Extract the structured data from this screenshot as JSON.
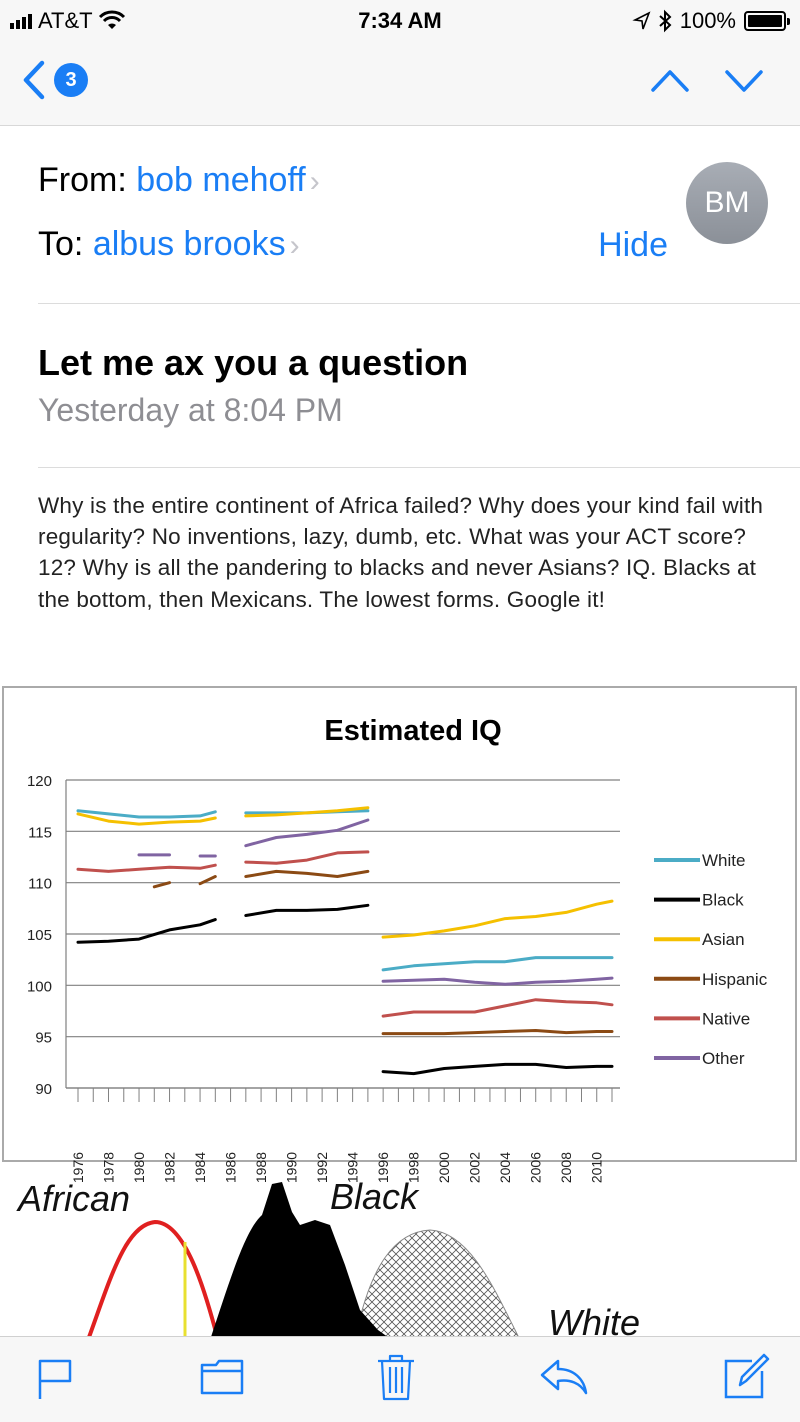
{
  "status": {
    "carrier": "AT&T",
    "time": "7:34 AM",
    "battery": "100%"
  },
  "nav": {
    "badge": "3"
  },
  "email": {
    "from_label": "From:",
    "from_name": "bob mehoff",
    "to_label": "To:",
    "to_name": "albus brooks",
    "hide_label": "Hide",
    "avatar_initials": "BM",
    "subject": "Let me ax you a question",
    "date": "Yesterday at 8:04 PM",
    "body": "Why is the entire continent of Africa failed?  Why does your kind fail with regularity?  No inventions, lazy, dumb, etc.  What was your ACT score?  12?  Why is all the pandering to blacks and never Asians?  IQ.  Blacks at the bottom, then Mexicans.  The lowest forms.  Google it!"
  },
  "bell_labels": {
    "african": "African",
    "black": "Black",
    "white": "White"
  },
  "chart_data": {
    "type": "line",
    "title": "Estimated IQ",
    "xlabel": "",
    "ylabel": "",
    "ylim": [
      90,
      120
    ],
    "yticks": [
      90,
      95,
      100,
      105,
      110,
      115,
      120
    ],
    "xlim": [
      1976,
      2011
    ],
    "xticks": [
      1976,
      1978,
      1980,
      1982,
      1984,
      1986,
      1988,
      1990,
      1992,
      1994,
      1996,
      1998,
      2000,
      2002,
      2004,
      2006,
      2008,
      2010
    ],
    "grid": true,
    "legend": "right",
    "series": [
      {
        "name": "White",
        "color": "#4bacc6",
        "segments": [
          [
            [
              1976,
              117.0
            ],
            [
              1978,
              116.7
            ],
            [
              1980,
              116.4
            ],
            [
              1982,
              116.4
            ],
            [
              1984,
              116.5
            ],
            [
              1985,
              116.9
            ]
          ],
          [
            [
              1987,
              116.8
            ],
            [
              1989,
              116.8
            ],
            [
              1991,
              116.8
            ],
            [
              1993,
              116.9
            ],
            [
              1995,
              117.0
            ]
          ],
          [
            [
              1996,
              101.5
            ],
            [
              1998,
              101.9
            ],
            [
              2000,
              102.1
            ],
            [
              2002,
              102.3
            ],
            [
              2004,
              102.3
            ],
            [
              2006,
              102.7
            ],
            [
              2008,
              102.7
            ],
            [
              2010,
              102.7
            ],
            [
              2011,
              102.7
            ]
          ]
        ]
      },
      {
        "name": "Black",
        "color": "#000000",
        "segments": [
          [
            [
              1976,
              104.2
            ],
            [
              1978,
              104.3
            ],
            [
              1980,
              104.5
            ],
            [
              1982,
              105.4
            ],
            [
              1984,
              105.9
            ],
            [
              1985,
              106.4
            ]
          ],
          [
            [
              1987,
              106.8
            ],
            [
              1989,
              107.3
            ],
            [
              1991,
              107.3
            ],
            [
              1993,
              107.4
            ],
            [
              1995,
              107.8
            ]
          ],
          [
            [
              1996,
              91.6
            ],
            [
              1998,
              91.4
            ],
            [
              2000,
              91.9
            ],
            [
              2002,
              92.1
            ],
            [
              2004,
              92.3
            ],
            [
              2006,
              92.3
            ],
            [
              2008,
              92.0
            ],
            [
              2010,
              92.1
            ],
            [
              2011,
              92.1
            ]
          ]
        ]
      },
      {
        "name": "Asian",
        "color": "#f5c000",
        "segments": [
          [
            [
              1976,
              116.7
            ],
            [
              1978,
              116.0
            ],
            [
              1980,
              115.7
            ],
            [
              1982,
              115.9
            ],
            [
              1984,
              116.0
            ],
            [
              1985,
              116.3
            ]
          ],
          [
            [
              1987,
              116.5
            ],
            [
              1989,
              116.6
            ],
            [
              1991,
              116.8
            ],
            [
              1993,
              117.0
            ],
            [
              1995,
              117.3
            ]
          ],
          [
            [
              1996,
              104.7
            ],
            [
              1998,
              104.9
            ],
            [
              2000,
              105.3
            ],
            [
              2002,
              105.8
            ],
            [
              2004,
              106.5
            ],
            [
              2006,
              106.7
            ],
            [
              2008,
              107.1
            ],
            [
              2010,
              107.9
            ],
            [
              2011,
              108.2
            ]
          ]
        ]
      },
      {
        "name": "Hispanic",
        "color": "#8b4a14",
        "segments": [
          [
            [
              1981,
              109.6
            ],
            [
              1982,
              110.0
            ]
          ],
          [
            [
              1984,
              109.9
            ],
            [
              1985,
              110.6
            ]
          ],
          [
            [
              1987,
              110.6
            ],
            [
              1989,
              111.1
            ],
            [
              1991,
              110.9
            ],
            [
              1993,
              110.6
            ],
            [
              1995,
              111.1
            ]
          ],
          [
            [
              1996,
              95.3
            ],
            [
              1998,
              95.3
            ],
            [
              2000,
              95.3
            ],
            [
              2002,
              95.4
            ],
            [
              2004,
              95.5
            ],
            [
              2006,
              95.6
            ],
            [
              2008,
              95.4
            ],
            [
              2010,
              95.5
            ],
            [
              2011,
              95.5
            ]
          ]
        ]
      },
      {
        "name": "Native",
        "color": "#c0504d",
        "segments": [
          [
            [
              1976,
              111.3
            ],
            [
              1978,
              111.1
            ],
            [
              1980,
              111.3
            ],
            [
              1982,
              111.5
            ],
            [
              1984,
              111.4
            ],
            [
              1985,
              111.7
            ]
          ],
          [
            [
              1987,
              112.0
            ],
            [
              1989,
              111.9
            ],
            [
              1991,
              112.2
            ],
            [
              1993,
              112.9
            ],
            [
              1995,
              113.0
            ]
          ],
          [
            [
              1996,
              97.0
            ],
            [
              1998,
              97.4
            ],
            [
              2000,
              97.4
            ],
            [
              2002,
              97.4
            ],
            [
              2004,
              98.0
            ],
            [
              2006,
              98.6
            ],
            [
              2008,
              98.4
            ],
            [
              2010,
              98.3
            ],
            [
              2011,
              98.1
            ]
          ]
        ]
      },
      {
        "name": "Other",
        "color": "#8064a2",
        "segments": [
          [
            [
              1980,
              112.7
            ],
            [
              1982,
              112.7
            ]
          ],
          [
            [
              1984,
              112.6
            ],
            [
              1985,
              112.6
            ]
          ],
          [
            [
              1987,
              113.6
            ],
            [
              1989,
              114.4
            ],
            [
              1991,
              114.7
            ],
            [
              1993,
              115.1
            ],
            [
              1995,
              116.1
            ]
          ],
          [
            [
              1996,
              100.4
            ],
            [
              1998,
              100.5
            ],
            [
              2000,
              100.6
            ],
            [
              2002,
              100.3
            ],
            [
              2004,
              100.1
            ],
            [
              2006,
              100.3
            ],
            [
              2008,
              100.4
            ],
            [
              2010,
              100.6
            ],
            [
              2011,
              100.7
            ]
          ]
        ]
      }
    ]
  }
}
